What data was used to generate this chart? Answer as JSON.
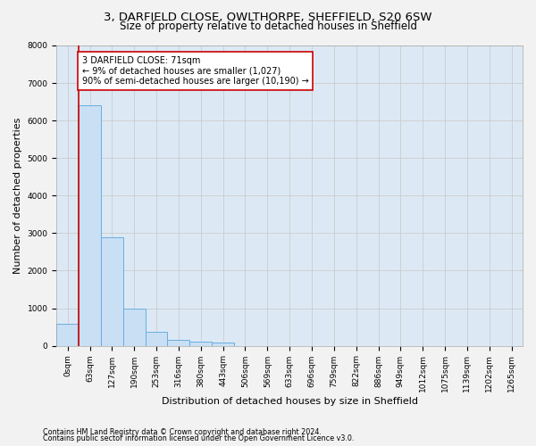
{
  "title_line1": "3, DARFIELD CLOSE, OWLTHORPE, SHEFFIELD, S20 6SW",
  "title_line2": "Size of property relative to detached houses in Sheffield",
  "xlabel": "Distribution of detached houses by size in Sheffield",
  "ylabel": "Number of detached properties",
  "bar_labels": [
    "0sqm",
    "63sqm",
    "127sqm",
    "190sqm",
    "253sqm",
    "316sqm",
    "380sqm",
    "443sqm",
    "506sqm",
    "569sqm",
    "633sqm",
    "696sqm",
    "759sqm",
    "822sqm",
    "886sqm",
    "949sqm",
    "1012sqm",
    "1075sqm",
    "1139sqm",
    "1202sqm",
    "1265sqm"
  ],
  "bar_values": [
    580,
    6400,
    2900,
    980,
    360,
    160,
    100,
    80,
    0,
    0,
    0,
    0,
    0,
    0,
    0,
    0,
    0,
    0,
    0,
    0,
    0
  ],
  "bar_color": "#c9dff4",
  "bar_edge_color": "#6aaee0",
  "vline_color": "#cc0000",
  "annotation_text": "3 DARFIELD CLOSE: 71sqm\n← 9% of detached houses are smaller (1,027)\n90% of semi-detached houses are larger (10,190) →",
  "annotation_box_color": "#ffffff",
  "annotation_box_edge": "#cc0000",
  "ylim": [
    0,
    8000
  ],
  "yticks": [
    0,
    1000,
    2000,
    3000,
    4000,
    5000,
    6000,
    7000,
    8000
  ],
  "grid_color": "#cccccc",
  "plot_bg_color": "#dce9f5",
  "fig_bg_color": "#f2f2f2",
  "footer_line1": "Contains HM Land Registry data © Crown copyright and database right 2024.",
  "footer_line2": "Contains public sector information licensed under the Open Government Licence v3.0.",
  "title_fontsize": 9.5,
  "subtitle_fontsize": 8.5,
  "tick_fontsize": 6.5,
  "ylabel_fontsize": 8,
  "xlabel_fontsize": 8,
  "annotation_fontsize": 7,
  "footer_fontsize": 5.8
}
